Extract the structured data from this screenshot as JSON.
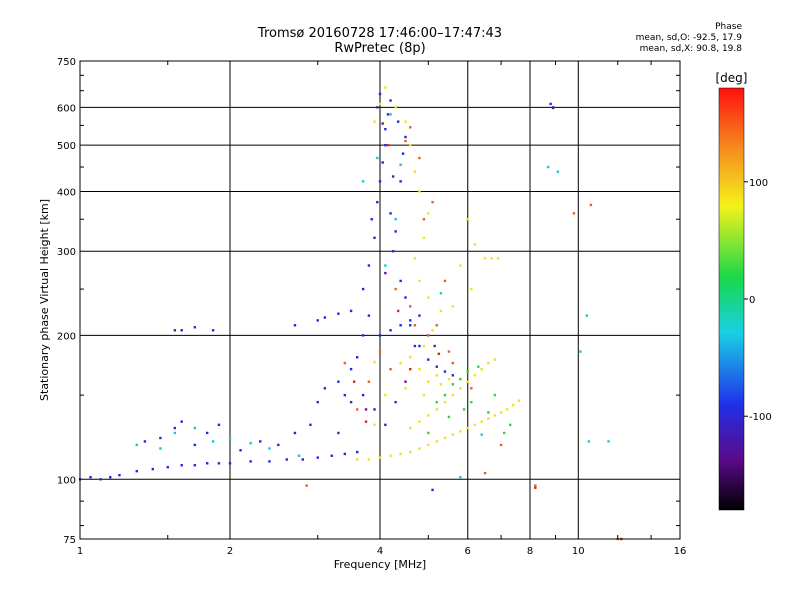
{
  "chart_data": {
    "type": "scatter",
    "title": "Tromsø 20160728 17:46:00–17:47:43",
    "subtitle": "RwPretec (8p)",
    "xlabel": "Frequency [MHz]",
    "ylabel": "Stationary phase Virtual Height [km]",
    "x_scale": "log",
    "y_scale": "log",
    "xlim": [
      1,
      16
    ],
    "ylim": [
      75,
      750
    ],
    "x_ticks": [
      1,
      2,
      4,
      6,
      8,
      10,
      16
    ],
    "x_tick_labels": [
      "1",
      "2",
      "4",
      "6",
      "8",
      "10",
      "16"
    ],
    "y_ticks": [
      75,
      100,
      200,
      300,
      400,
      500,
      600,
      750
    ],
    "y_tick_labels": [
      "75",
      "100",
      "200",
      "300",
      "400",
      "500",
      "600",
      "750"
    ],
    "grid": true,
    "colorbar": {
      "label": "[deg]",
      "range": [
        -180,
        180
      ],
      "ticks": [
        -100,
        0,
        100
      ],
      "tick_labels": [
        "-100",
        "0",
        "100"
      ]
    },
    "phase_stats": {
      "heading": "Phase",
      "line_o": "mean, sd,O: -92.5, 17.9",
      "line_x": "mean, sd,X:  90.8, 19.8"
    },
    "series": [
      {
        "mode": "O",
        "color": "#1a2be0",
        "points": [
          [
            1.0,
            100
          ],
          [
            1.05,
            101
          ],
          [
            1.1,
            100
          ],
          [
            1.15,
            101
          ],
          [
            1.2,
            102
          ],
          [
            1.3,
            104
          ],
          [
            1.4,
            105
          ],
          [
            1.5,
            106
          ],
          [
            1.6,
            107
          ],
          [
            1.7,
            107
          ],
          [
            1.8,
            108
          ],
          [
            1.9,
            108
          ],
          [
            2.0,
            108
          ],
          [
            2.2,
            109
          ],
          [
            2.4,
            109
          ],
          [
            2.6,
            110
          ],
          [
            2.8,
            110
          ],
          [
            3.0,
            111
          ],
          [
            3.2,
            112
          ],
          [
            3.4,
            113
          ],
          [
            3.6,
            114
          ],
          [
            1.35,
            120
          ],
          [
            1.45,
            122
          ],
          [
            1.55,
            128
          ],
          [
            1.6,
            132
          ],
          [
            1.7,
            118
          ],
          [
            1.8,
            125
          ],
          [
            1.9,
            130
          ],
          [
            2.1,
            115
          ],
          [
            2.3,
            120
          ],
          [
            2.5,
            118
          ],
          [
            2.7,
            125
          ],
          [
            2.9,
            130
          ],
          [
            3.0,
            145
          ],
          [
            3.1,
            155
          ],
          [
            3.3,
            160
          ],
          [
            3.4,
            150
          ],
          [
            3.5,
            170
          ],
          [
            3.6,
            180
          ],
          [
            3.7,
            200
          ],
          [
            3.8,
            220
          ],
          [
            3.5,
            225
          ],
          [
            3.3,
            222
          ],
          [
            3.1,
            218
          ],
          [
            3.0,
            215
          ],
          [
            3.7,
            250
          ],
          [
            3.8,
            280
          ],
          [
            3.9,
            320
          ],
          [
            3.85,
            350
          ],
          [
            3.95,
            380
          ],
          [
            4.0,
            420
          ],
          [
            4.05,
            460
          ],
          [
            4.1,
            500
          ],
          [
            4.1,
            540
          ],
          [
            4.15,
            580
          ],
          [
            4.2,
            620
          ],
          [
            4.0,
            640
          ],
          [
            3.95,
            600
          ],
          [
            4.25,
            300
          ],
          [
            4.3,
            330
          ],
          [
            4.2,
            360
          ],
          [
            4.4,
            420
          ],
          [
            4.45,
            480
          ],
          [
            4.5,
            520
          ],
          [
            4.35,
            560
          ],
          [
            4.4,
            260
          ],
          [
            4.5,
            240
          ],
          [
            4.6,
            210
          ],
          [
            4.7,
            190
          ],
          [
            4.0,
            200
          ],
          [
            4.2,
            205
          ],
          [
            4.4,
            210
          ],
          [
            4.6,
            215
          ],
          [
            4.8,
            220
          ],
          [
            5.0,
            200
          ],
          [
            4.8,
            190
          ],
          [
            5.0,
            178
          ],
          [
            5.2,
            172
          ],
          [
            5.4,
            168
          ],
          [
            5.6,
            165
          ],
          [
            3.7,
            150
          ],
          [
            3.9,
            140
          ],
          [
            4.1,
            130
          ],
          [
            4.3,
            145
          ],
          [
            8.9,
            600
          ],
          [
            8.8,
            610
          ],
          [
            1.6,
            205
          ],
          [
            1.85,
            205
          ],
          [
            2.7,
            210
          ],
          [
            5.1,
            95
          ]
        ]
      },
      {
        "mode": "X",
        "color": "#f2e21c",
        "points": [
          [
            3.6,
            110
          ],
          [
            3.8,
            110
          ],
          [
            4.0,
            111
          ],
          [
            4.2,
            112
          ],
          [
            4.4,
            113
          ],
          [
            4.6,
            114
          ],
          [
            4.8,
            116
          ],
          [
            5.0,
            118
          ],
          [
            5.2,
            120
          ],
          [
            5.4,
            122
          ],
          [
            5.6,
            124
          ],
          [
            5.8,
            126
          ],
          [
            6.0,
            128
          ],
          [
            6.2,
            130
          ],
          [
            6.4,
            132
          ],
          [
            6.6,
            134
          ],
          [
            6.8,
            136
          ],
          [
            7.0,
            138
          ],
          [
            7.2,
            140
          ],
          [
            7.4,
            143
          ],
          [
            7.6,
            146
          ],
          [
            4.6,
            128
          ],
          [
            4.8,
            132
          ],
          [
            5.0,
            136
          ],
          [
            5.2,
            140
          ],
          [
            5.4,
            145
          ],
          [
            5.6,
            150
          ],
          [
            5.8,
            155
          ],
          [
            6.0,
            160
          ],
          [
            6.2,
            165
          ],
          [
            6.4,
            170
          ],
          [
            6.6,
            175
          ],
          [
            6.8,
            178
          ],
          [
            5.0,
            160
          ],
          [
            5.2,
            165
          ],
          [
            4.8,
            170
          ],
          [
            4.6,
            180
          ],
          [
            4.4,
            175
          ],
          [
            4.5,
            155
          ],
          [
            4.9,
            150
          ],
          [
            5.3,
            158
          ],
          [
            5.5,
            162
          ],
          [
            4.9,
            190
          ],
          [
            5.1,
            205
          ],
          [
            5.3,
            225
          ],
          [
            5.0,
            240
          ],
          [
            4.8,
            260
          ],
          [
            4.7,
            290
          ],
          [
            4.9,
            320
          ],
          [
            5.0,
            360
          ],
          [
            4.8,
            400
          ],
          [
            4.7,
            440
          ],
          [
            4.6,
            500
          ],
          [
            4.5,
            560
          ],
          [
            4.3,
            600
          ],
          [
            4.1,
            660
          ],
          [
            4.0,
            610
          ],
          [
            3.9,
            560
          ],
          [
            6.5,
            290
          ],
          [
            6.7,
            290
          ],
          [
            6.9,
            290
          ],
          [
            5.6,
            230
          ],
          [
            5.8,
            280
          ],
          [
            6.1,
            250
          ],
          [
            3.9,
            176
          ],
          [
            3.9,
            130
          ],
          [
            4.1,
            150
          ],
          [
            6.2,
            310
          ],
          [
            6.0,
            350
          ]
        ]
      },
      {
        "mode": "other",
        "color": "#e0642a",
        "points": [
          [
            4.3,
            250
          ],
          [
            4.6,
            230
          ],
          [
            4.7,
            210
          ],
          [
            5.0,
            200
          ],
          [
            5.2,
            210
          ],
          [
            5.4,
            260
          ],
          [
            4.9,
            350
          ],
          [
            5.1,
            380
          ],
          [
            4.8,
            470
          ],
          [
            4.6,
            545
          ],
          [
            4.5,
            510
          ],
          [
            3.6,
            140
          ],
          [
            3.8,
            160
          ],
          [
            4.0,
            185
          ],
          [
            4.2,
            170
          ],
          [
            2.85,
            97
          ],
          [
            8.2,
            97
          ],
          [
            7.0,
            118
          ],
          [
            6.5,
            103
          ],
          [
            10.6,
            375
          ],
          [
            12.0,
            75
          ],
          [
            5.6,
            175
          ],
          [
            5.5,
            185
          ],
          [
            3.4,
            175
          ],
          [
            6.1,
            155
          ],
          [
            9.8,
            360
          ]
        ]
      },
      {
        "mode": "other",
        "color": "#16c8d8",
        "points": [
          [
            1.3,
            118
          ],
          [
            1.45,
            116
          ],
          [
            1.55,
            125
          ],
          [
            1.7,
            128
          ],
          [
            1.85,
            120
          ],
          [
            2.0,
            122
          ],
          [
            2.2,
            119
          ],
          [
            2.4,
            116
          ],
          [
            2.75,
            112
          ],
          [
            3.7,
            420
          ],
          [
            3.95,
            470
          ],
          [
            4.2,
            580
          ],
          [
            4.4,
            455
          ],
          [
            4.1,
            280
          ],
          [
            4.3,
            350
          ],
          [
            6.4,
            124
          ],
          [
            8.7,
            450
          ],
          [
            10.4,
            220
          ],
          [
            10.5,
            120
          ],
          [
            5.8,
            101
          ],
          [
            9.1,
            440
          ],
          [
            11.5,
            120
          ],
          [
            10.1,
            185
          ],
          [
            5.3,
            245
          ]
        ]
      },
      {
        "mode": "other",
        "color": "#31d43c",
        "points": [
          [
            5.2,
            145
          ],
          [
            5.4,
            150
          ],
          [
            5.6,
            158
          ],
          [
            5.8,
            162
          ],
          [
            6.0,
            168
          ],
          [
            6.3,
            172
          ],
          [
            5.9,
            140
          ],
          [
            6.1,
            145
          ],
          [
            6.6,
            138
          ],
          [
            5.0,
            125
          ],
          [
            5.5,
            135
          ],
          [
            6.8,
            150
          ],
          [
            7.1,
            125
          ],
          [
            7.3,
            130
          ]
        ]
      },
      {
        "mode": "other",
        "color": "#6b1496",
        "points": [
          [
            1.55,
            205
          ],
          [
            1.7,
            208
          ],
          [
            3.5,
            145
          ],
          [
            3.75,
            140
          ],
          [
            4.05,
            555
          ],
          [
            4.25,
            430
          ],
          [
            8.9,
            598
          ],
          [
            4.1,
            270
          ],
          [
            4.5,
            160
          ],
          [
            5.15,
            190
          ],
          [
            3.3,
            125
          ]
        ]
      },
      {
        "mode": "other",
        "color": "#d8281e",
        "points": [
          [
            3.55,
            160
          ],
          [
            3.75,
            132
          ],
          [
            4.35,
            225
          ],
          [
            4.15,
            500
          ],
          [
            5.25,
            183
          ],
          [
            12.2,
            75
          ],
          [
            8.2,
            96
          ],
          [
            4.6,
            170
          ]
        ]
      }
    ]
  }
}
